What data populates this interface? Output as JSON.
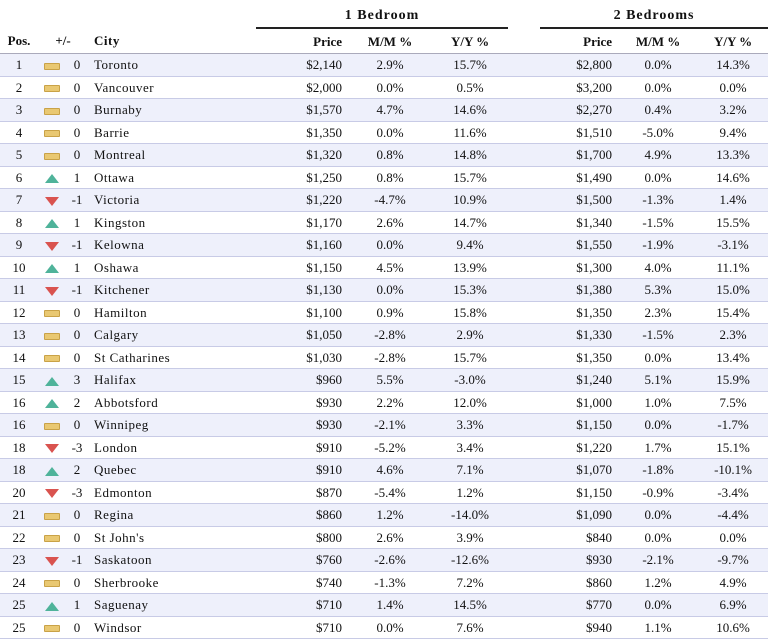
{
  "groups": {
    "one": "1 Bedroom",
    "two": "2 Bedrooms"
  },
  "headers": {
    "pos": "Pos.",
    "change": "+/-",
    "city": "City",
    "price1": "Price",
    "mm1": "M/M %",
    "yy1": "Y/Y %",
    "price2": "Price",
    "mm2": "M/M %",
    "yy2": "Y/Y %"
  },
  "rows": [
    {
      "pos": "1",
      "trend": "flat",
      "change": "0",
      "city": "Toronto",
      "p1": "$2,140",
      "mm1": "2.9%",
      "yy1": "15.7%",
      "p2": "$2,800",
      "mm2": "0.0%",
      "yy2": "14.3%"
    },
    {
      "pos": "2",
      "trend": "flat",
      "change": "0",
      "city": "Vancouver",
      "p1": "$2,000",
      "mm1": "0.0%",
      "yy1": "0.5%",
      "p2": "$3,200",
      "mm2": "0.0%",
      "yy2": "0.0%"
    },
    {
      "pos": "3",
      "trend": "flat",
      "change": "0",
      "city": "Burnaby",
      "p1": "$1,570",
      "mm1": "4.7%",
      "yy1": "14.6%",
      "p2": "$2,270",
      "mm2": "0.4%",
      "yy2": "3.2%"
    },
    {
      "pos": "4",
      "trend": "flat",
      "change": "0",
      "city": "Barrie",
      "p1": "$1,350",
      "mm1": "0.0%",
      "yy1": "11.6%",
      "p2": "$1,510",
      "mm2": "-5.0%",
      "yy2": "9.4%"
    },
    {
      "pos": "5",
      "trend": "flat",
      "change": "0",
      "city": "Montreal",
      "p1": "$1,320",
      "mm1": "0.8%",
      "yy1": "14.8%",
      "p2": "$1,700",
      "mm2": "4.9%",
      "yy2": "13.3%"
    },
    {
      "pos": "6",
      "trend": "up",
      "change": "1",
      "city": "Ottawa",
      "p1": "$1,250",
      "mm1": "0.8%",
      "yy1": "15.7%",
      "p2": "$1,490",
      "mm2": "0.0%",
      "yy2": "14.6%"
    },
    {
      "pos": "7",
      "trend": "down",
      "change": "-1",
      "city": "Victoria",
      "p1": "$1,220",
      "mm1": "-4.7%",
      "yy1": "10.9%",
      "p2": "$1,500",
      "mm2": "-1.3%",
      "yy2": "1.4%"
    },
    {
      "pos": "8",
      "trend": "up",
      "change": "1",
      "city": "Kingston",
      "p1": "$1,170",
      "mm1": "2.6%",
      "yy1": "14.7%",
      "p2": "$1,340",
      "mm2": "-1.5%",
      "yy2": "15.5%"
    },
    {
      "pos": "9",
      "trend": "down",
      "change": "-1",
      "city": "Kelowna",
      "p1": "$1,160",
      "mm1": "0.0%",
      "yy1": "9.4%",
      "p2": "$1,550",
      "mm2": "-1.9%",
      "yy2": "-3.1%"
    },
    {
      "pos": "10",
      "trend": "up",
      "change": "1",
      "city": "Oshawa",
      "p1": "$1,150",
      "mm1": "4.5%",
      "yy1": "13.9%",
      "p2": "$1,300",
      "mm2": "4.0%",
      "yy2": "11.1%"
    },
    {
      "pos": "11",
      "trend": "down",
      "change": "-1",
      "city": "Kitchener",
      "p1": "$1,130",
      "mm1": "0.0%",
      "yy1": "15.3%",
      "p2": "$1,380",
      "mm2": "5.3%",
      "yy2": "15.0%"
    },
    {
      "pos": "12",
      "trend": "flat",
      "change": "0",
      "city": "Hamilton",
      "p1": "$1,100",
      "mm1": "0.9%",
      "yy1": "15.8%",
      "p2": "$1,350",
      "mm2": "2.3%",
      "yy2": "15.4%"
    },
    {
      "pos": "13",
      "trend": "flat",
      "change": "0",
      "city": "Calgary",
      "p1": "$1,050",
      "mm1": "-2.8%",
      "yy1": "2.9%",
      "p2": "$1,330",
      "mm2": "-1.5%",
      "yy2": "2.3%"
    },
    {
      "pos": "14",
      "trend": "flat",
      "change": "0",
      "city": "St Catharines",
      "p1": "$1,030",
      "mm1": "-2.8%",
      "yy1": "15.7%",
      "p2": "$1,350",
      "mm2": "0.0%",
      "yy2": "13.4%"
    },
    {
      "pos": "15",
      "trend": "up",
      "change": "3",
      "city": "Halifax",
      "p1": "$960",
      "mm1": "5.5%",
      "yy1": "-3.0%",
      "p2": "$1,240",
      "mm2": "5.1%",
      "yy2": "15.9%"
    },
    {
      "pos": "16",
      "trend": "up",
      "change": "2",
      "city": "Abbotsford",
      "p1": "$930",
      "mm1": "2.2%",
      "yy1": "12.0%",
      "p2": "$1,000",
      "mm2": "1.0%",
      "yy2": "7.5%"
    },
    {
      "pos": "16",
      "trend": "flat",
      "change": "0",
      "city": "Winnipeg",
      "p1": "$930",
      "mm1": "-2.1%",
      "yy1": "3.3%",
      "p2": "$1,150",
      "mm2": "0.0%",
      "yy2": "-1.7%"
    },
    {
      "pos": "18",
      "trend": "down",
      "change": "-3",
      "city": "London",
      "p1": "$910",
      "mm1": "-5.2%",
      "yy1": "3.4%",
      "p2": "$1,220",
      "mm2": "1.7%",
      "yy2": "15.1%"
    },
    {
      "pos": "18",
      "trend": "up",
      "change": "2",
      "city": "Quebec",
      "p1": "$910",
      "mm1": "4.6%",
      "yy1": "7.1%",
      "p2": "$1,070",
      "mm2": "-1.8%",
      "yy2": "-10.1%"
    },
    {
      "pos": "20",
      "trend": "down",
      "change": "-3",
      "city": "Edmonton",
      "p1": "$870",
      "mm1": "-5.4%",
      "yy1": "1.2%",
      "p2": "$1,150",
      "mm2": "-0.9%",
      "yy2": "-3.4%"
    },
    {
      "pos": "21",
      "trend": "flat",
      "change": "0",
      "city": "Regina",
      "p1": "$860",
      "mm1": "1.2%",
      "yy1": "-14.0%",
      "p2": "$1,090",
      "mm2": "0.0%",
      "yy2": "-4.4%"
    },
    {
      "pos": "22",
      "trend": "flat",
      "change": "0",
      "city": "St John's",
      "p1": "$800",
      "mm1": "2.6%",
      "yy1": "3.9%",
      "p2": "$840",
      "mm2": "0.0%",
      "yy2": "0.0%"
    },
    {
      "pos": "23",
      "trend": "down",
      "change": "-1",
      "city": "Saskatoon",
      "p1": "$760",
      "mm1": "-2.6%",
      "yy1": "-12.6%",
      "p2": "$930",
      "mm2": "-2.1%",
      "yy2": "-9.7%"
    },
    {
      "pos": "24",
      "trend": "flat",
      "change": "0",
      "city": "Sherbrooke",
      "p1": "$740",
      "mm1": "-1.3%",
      "yy1": "7.2%",
      "p2": "$860",
      "mm2": "1.2%",
      "yy2": "4.9%"
    },
    {
      "pos": "25",
      "trend": "up",
      "change": "1",
      "city": "Saguenay",
      "p1": "$710",
      "mm1": "1.4%",
      "yy1": "14.5%",
      "p2": "$770",
      "mm2": "0.0%",
      "yy2": "6.9%"
    },
    {
      "pos": "25",
      "trend": "flat",
      "change": "0",
      "city": "Windsor",
      "p1": "$710",
      "mm1": "0.0%",
      "yy1": "7.6%",
      "p2": "$940",
      "mm2": "1.1%",
      "yy2": "10.6%"
    }
  ]
}
